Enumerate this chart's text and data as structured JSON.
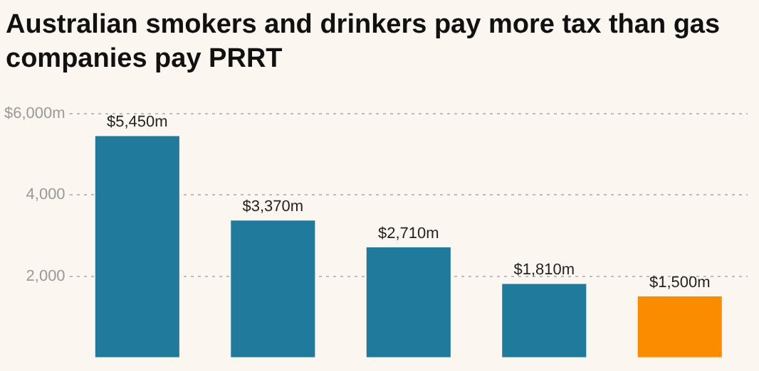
{
  "chart_data": {
    "type": "bar",
    "title": "Australian smokers and drinkers pay more tax than gas companies pay PRRT",
    "categories": [
      null,
      null,
      null,
      null,
      null
    ],
    "values": [
      5450,
      3370,
      2710,
      1810,
      1500
    ],
    "colors": [
      "#1f7a9b",
      "#1f7a9b",
      "#1f7a9b",
      "#1f7a9b",
      "#fb8c00"
    ],
    "value_labels": [
      "$5,450m",
      "$3,370m",
      "$2,710m",
      "$1,810m",
      "$1,500m"
    ],
    "ylim": [
      0,
      6000
    ],
    "yticks": [
      {
        "value": 2000,
        "label": "2,000"
      },
      {
        "value": 4000,
        "label": "4,000"
      },
      {
        "value": 6000,
        "label": "$6,000m"
      }
    ],
    "grid": "y"
  }
}
